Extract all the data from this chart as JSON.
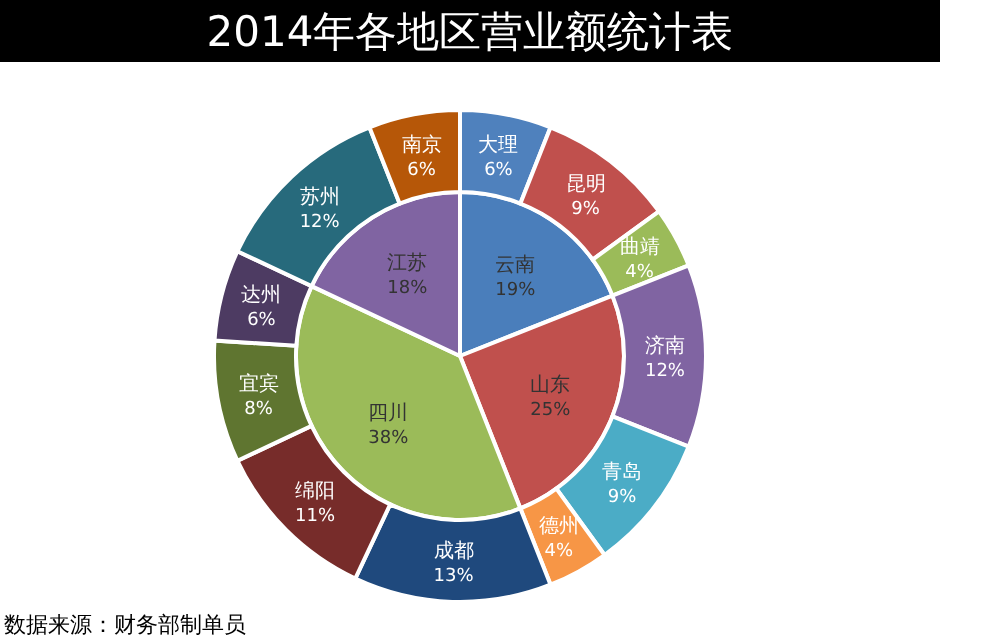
{
  "chart_data": [
    {
      "type": "pie",
      "title": "2014年各地区营业额统计表",
      "annotations": [
        "数据来源：财务部制单员"
      ],
      "categories": [
        "云南",
        "山东",
        "四川",
        "江苏"
      ],
      "values": [
        19,
        25,
        38,
        18
      ],
      "value_labels": [
        "19%",
        "25%",
        "38%",
        "18%"
      ],
      "colors": [
        "#4a7ebb",
        "#c0504d",
        "#9bbb59",
        "#8064a2"
      ]
    },
    {
      "type": "donut",
      "categories": [
        "大理",
        "昆明",
        "曲靖",
        "济南",
        "青岛",
        "德州",
        "成都",
        "绵阳",
        "宜宾",
        "达州",
        "苏州",
        "南京"
      ],
      "values": [
        6,
        9,
        4,
        12,
        9,
        4,
        13,
        11,
        8,
        6,
        12,
        6
      ],
      "value_labels": [
        "6%",
        "9%",
        "4%",
        "12%",
        "9%",
        "4%",
        "13%",
        "11%",
        "8%",
        "6%",
        "12%",
        "6%"
      ],
      "colors": [
        "#4f81bd",
        "#c0504d",
        "#9bbb59",
        "#8064a2",
        "#4bacc6",
        "#f79646",
        "#1f497d",
        "#772c2a",
        "#5f7530",
        "#4d3b62",
        "#276a7c",
        "#b65708"
      ]
    }
  ]
}
